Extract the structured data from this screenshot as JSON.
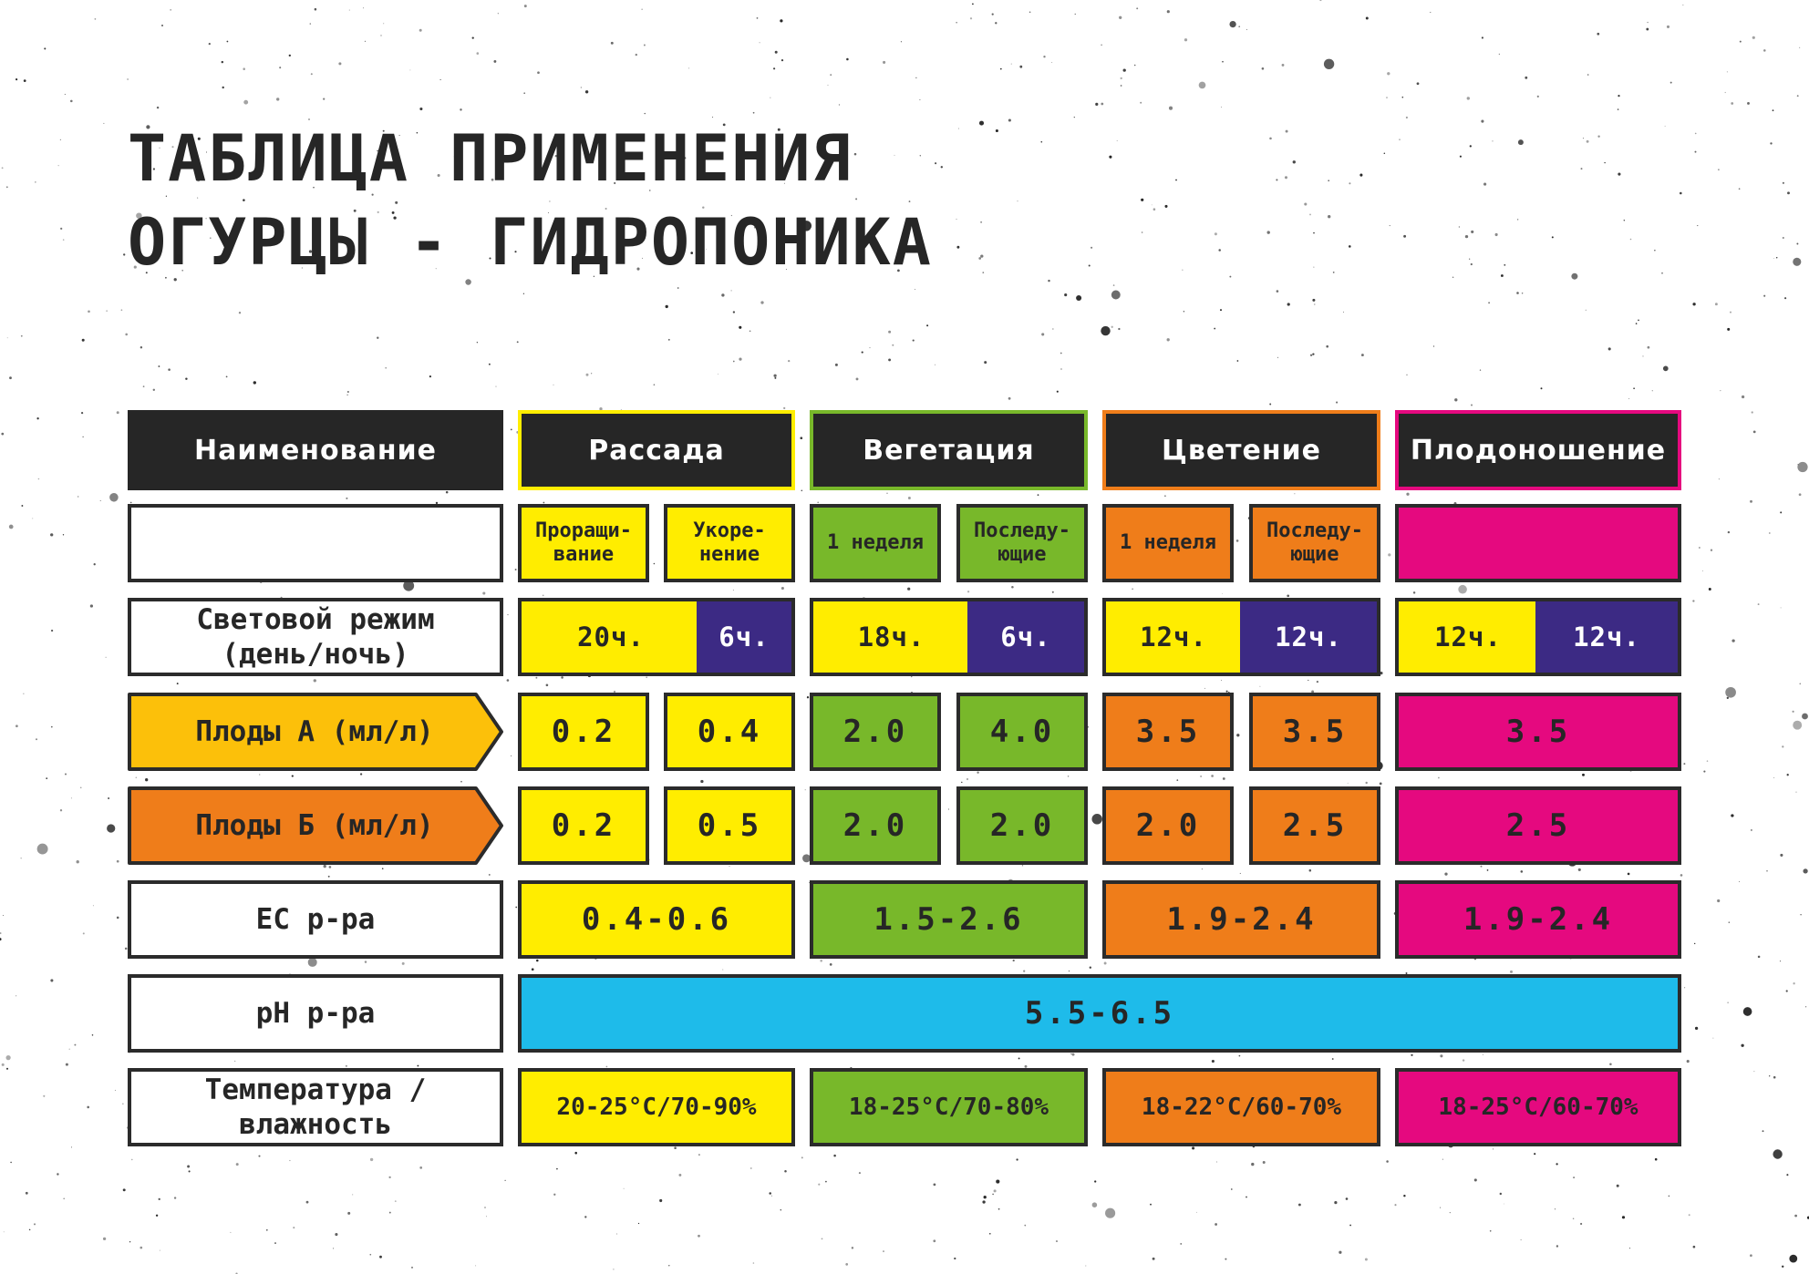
{
  "title": {
    "line1": "ТАБЛИЦА ПРИМЕНЕНИЯ",
    "line2": "ОГУРЦЫ - ГИДРОПОНИКА"
  },
  "colors": {
    "yellow": "#ffed00",
    "green": "#78b82a",
    "orange": "#ef7d1a",
    "magenta": "#e5097f",
    "blue": "#1ebbea",
    "indigo": "#3c2a84",
    "dark": "#262626"
  },
  "headers": {
    "name": "Наименование",
    "seedling": "Рассада",
    "vegetation": "Вегетация",
    "flowering": "Цветение",
    "fruiting": "Плодоношение"
  },
  "substages": {
    "seedling_1": "Проращи-вание",
    "seedling_2": "Укоре-нение",
    "vegetation_1": "1 неделя",
    "vegetation_2": "Последу-ющие",
    "flowering_1": "1 неделя",
    "flowering_2": "Последу-ющие",
    "fruiting": ""
  },
  "light": {
    "label": "Световой режим (день/ночь)",
    "seedling": {
      "day": "20ч.",
      "night": "6ч."
    },
    "vegetation": {
      "day": "18ч.",
      "night": "6ч."
    },
    "flowering": {
      "day": "12ч.",
      "night": "12ч."
    },
    "fruiting": {
      "day": "12ч.",
      "night": "12ч."
    }
  },
  "fruits_a": {
    "label": "Плоды А (мл/л)",
    "values": [
      "0.2",
      "0.4",
      "2.0",
      "4.0",
      "3.5",
      "3.5",
      "3.5"
    ]
  },
  "fruits_b": {
    "label": "Плоды Б (мл/л)",
    "values": [
      "0.2",
      "0.5",
      "2.0",
      "2.0",
      "2.0",
      "2.5",
      "2.5"
    ]
  },
  "ec": {
    "label": "EC р-ра",
    "values": [
      "0.4-0.6",
      "1.5-2.6",
      "1.9-2.4",
      "1.9-2.4"
    ]
  },
  "ph": {
    "label": "pH р-ра",
    "value": "5.5-6.5"
  },
  "temperature": {
    "label": "Температура / влажность",
    "values": [
      "20-25°C/70-90%",
      "18-25°C/70-80%",
      "18-22°C/60-70%",
      "18-25°C/60-70%"
    ]
  }
}
